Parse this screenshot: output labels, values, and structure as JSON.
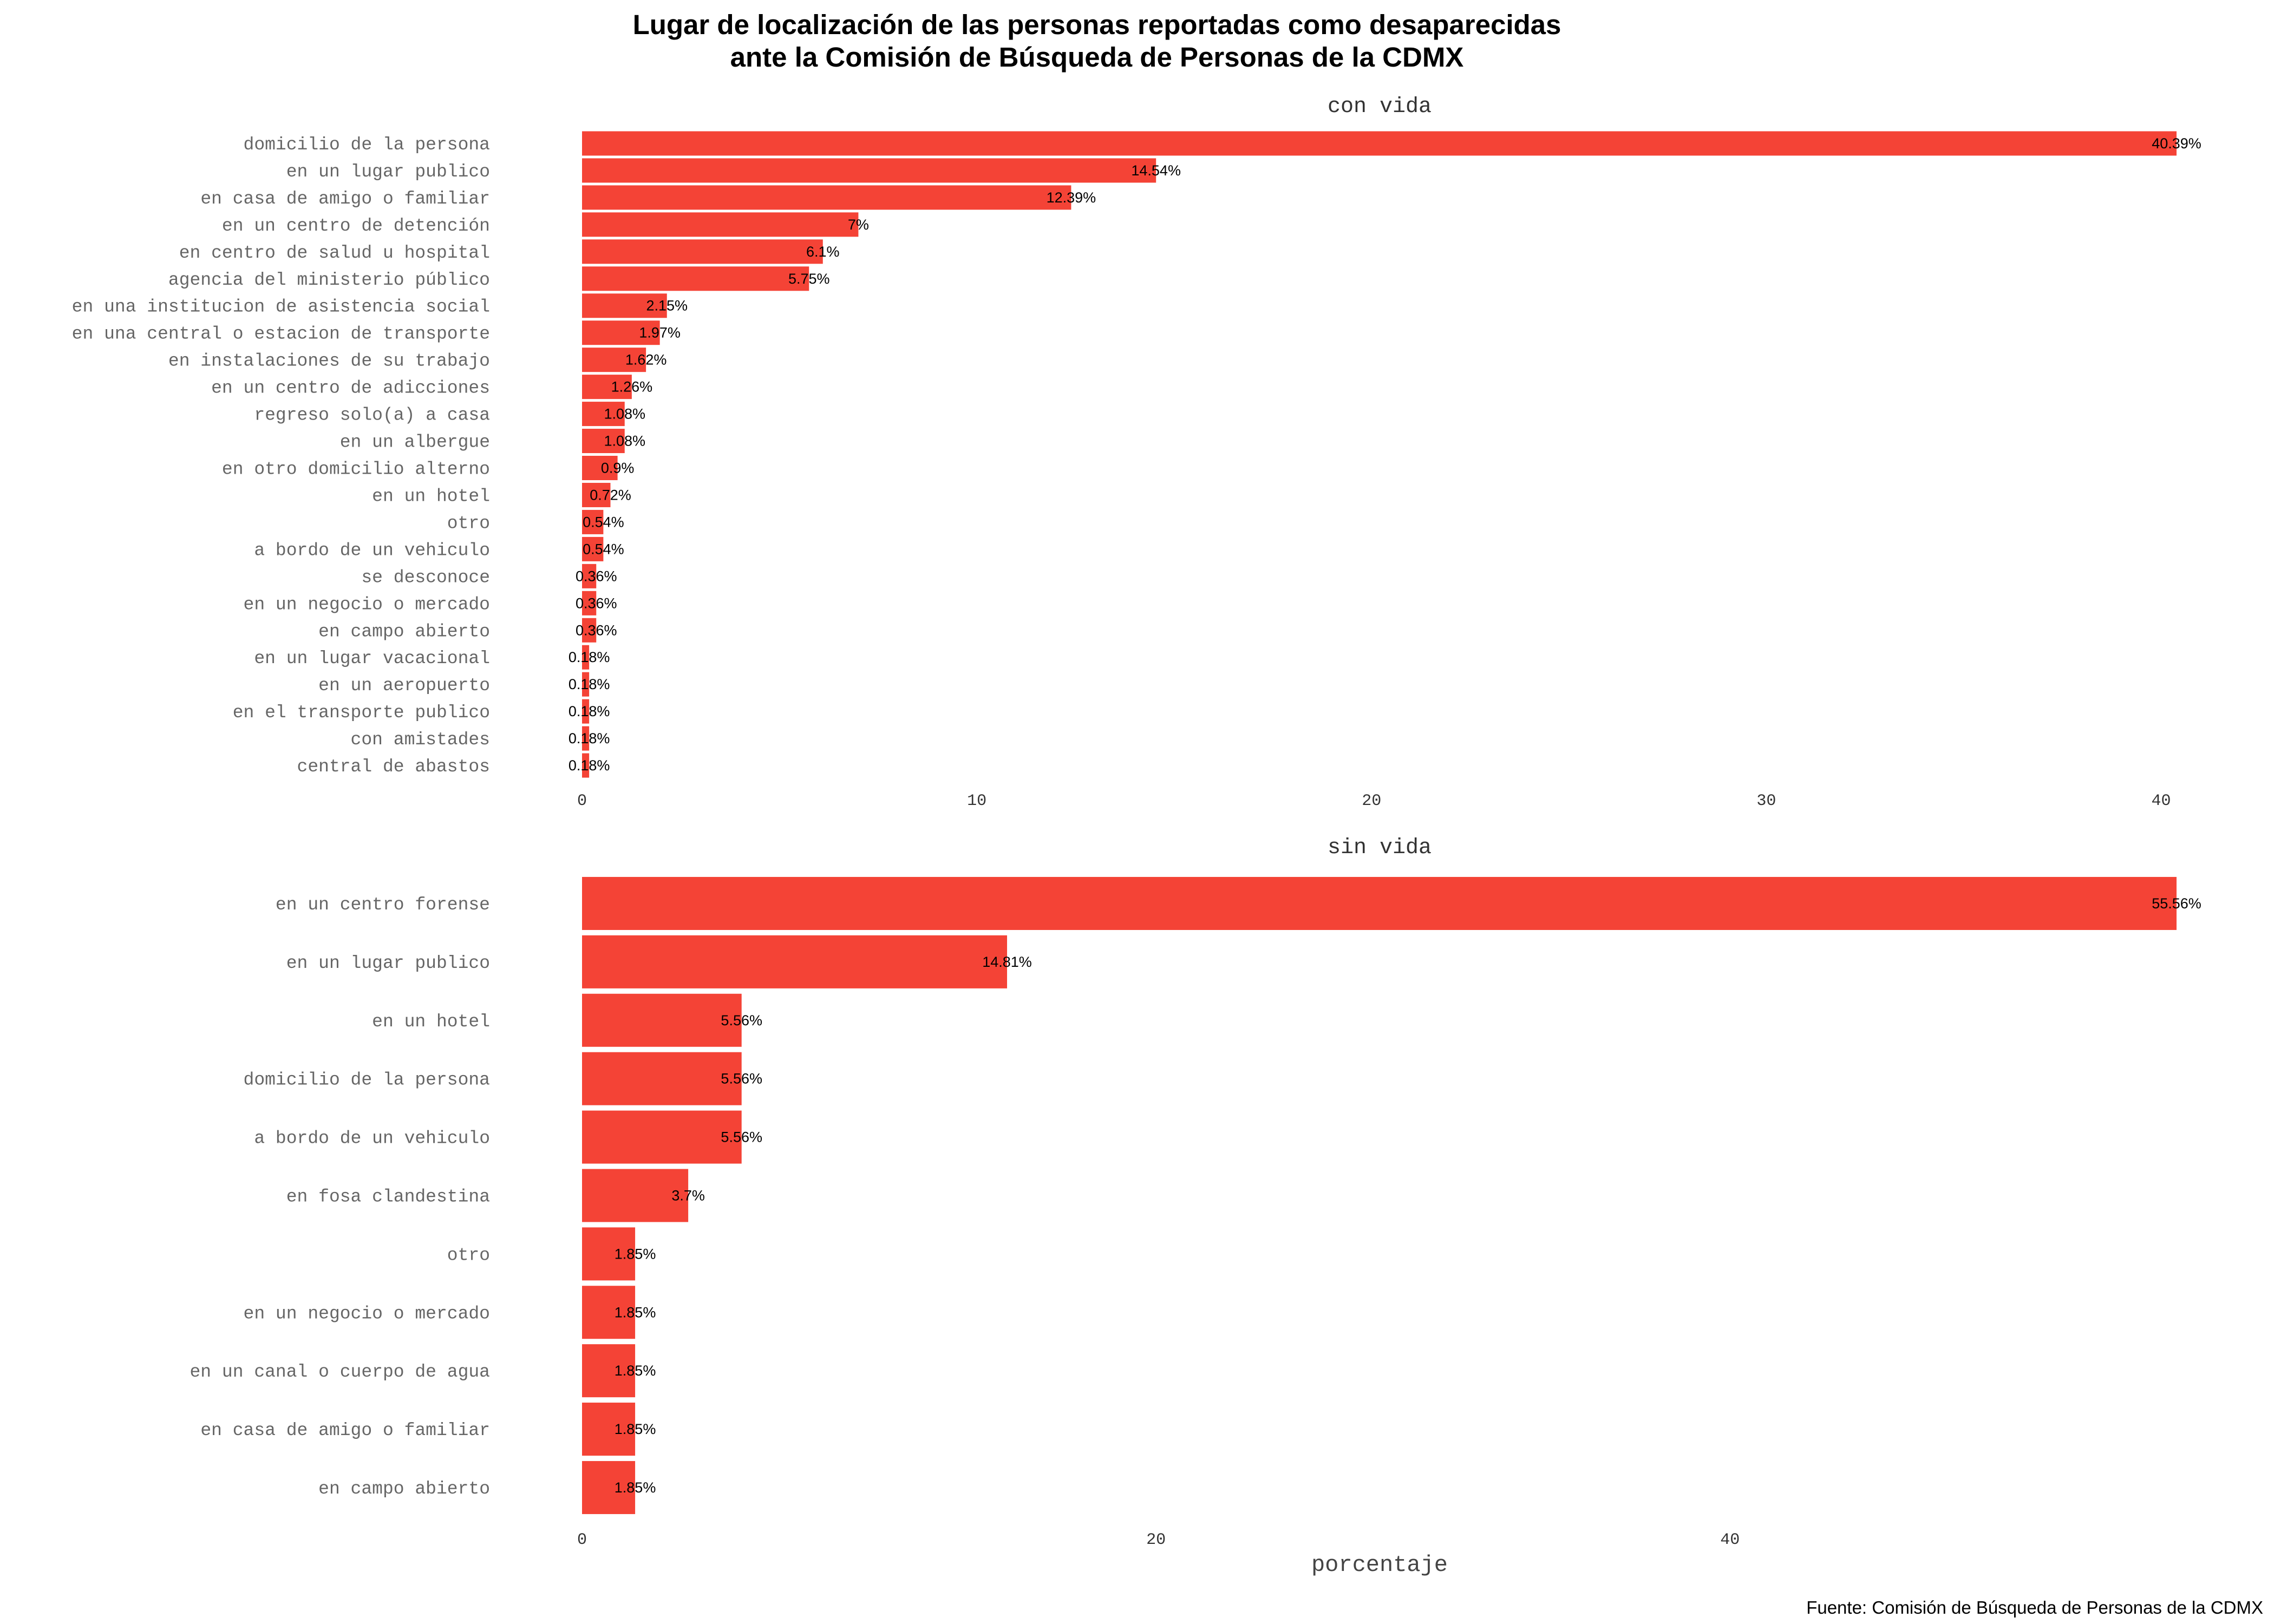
{
  "title_line1": "Lugar de localización de las personas reportadas como desaparecidas",
  "title_line2": "ante la Comisión de Búsqueda de Personas de la CDMX",
  "caption": "Fuente: Comisión de Búsqueda de Personas de la CDMX",
  "bar_color": "#F44336",
  "chart_data": [
    {
      "type": "bar",
      "orientation": "horizontal",
      "panel": "con vida",
      "xlabel": "",
      "xlim": [
        0,
        40.39
      ],
      "x_ticks": [
        0,
        10,
        20,
        30,
        40
      ],
      "categories": [
        "domicilio de la persona",
        "en un lugar publico",
        "en casa de amigo o familiar",
        "en un centro de detención",
        "en centro de salud u hospital",
        "agencia del ministerio público",
        "en una institucion de asistencia social",
        "en una central o estacion de transporte",
        "en instalaciones de su trabajo",
        "en un centro de adicciones",
        "regreso solo(a) a casa",
        "en un albergue",
        "en otro domicilio alterno",
        "en un hotel",
        "otro",
        "a bordo de un vehiculo",
        "se desconoce",
        "en un negocio o mercado",
        "en campo abierto",
        "en un lugar vacacional",
        "en un aeropuerto",
        "en el transporte publico",
        "con amistades",
        "central de abastos"
      ],
      "values": [
        40.39,
        14.54,
        12.39,
        7,
        6.1,
        5.75,
        2.15,
        1.97,
        1.62,
        1.26,
        1.08,
        1.08,
        0.9,
        0.72,
        0.54,
        0.54,
        0.36,
        0.36,
        0.36,
        0.18,
        0.18,
        0.18,
        0.18,
        0.18
      ],
      "value_labels": [
        "40.39%",
        "14.54%",
        "12.39%",
        "7%",
        "6.1%",
        "5.75%",
        "2.15%",
        "1.97%",
        "1.62%",
        "1.26%",
        "1.08%",
        "1.08%",
        "0.9%",
        "0.72%",
        "0.54%",
        "0.54%",
        "0.36%",
        "0.36%",
        "0.36%",
        "0.18%",
        "0.18%",
        "0.18%",
        "0.18%",
        "0.18%"
      ]
    },
    {
      "type": "bar",
      "orientation": "horizontal",
      "panel": "sin vida",
      "xlabel": "porcentaje",
      "xlim": [
        0,
        55.56
      ],
      "x_ticks": [
        0,
        20,
        40
      ],
      "categories": [
        "en un centro forense",
        "en un lugar publico",
        "en un hotel",
        "domicilio de la persona",
        "a bordo de un vehiculo",
        "en fosa clandestina",
        "otro",
        "en un negocio o mercado",
        "en un canal o cuerpo de agua",
        "en casa de amigo o familiar",
        "en campo abierto"
      ],
      "values": [
        55.56,
        14.81,
        5.56,
        5.56,
        5.56,
        3.7,
        1.85,
        1.85,
        1.85,
        1.85,
        1.85
      ],
      "value_labels": [
        "55.56%",
        "14.81%",
        "5.56%",
        "5.56%",
        "5.56%",
        "3.7%",
        "1.85%",
        "1.85%",
        "1.85%",
        "1.85%",
        "1.85%"
      ]
    }
  ]
}
